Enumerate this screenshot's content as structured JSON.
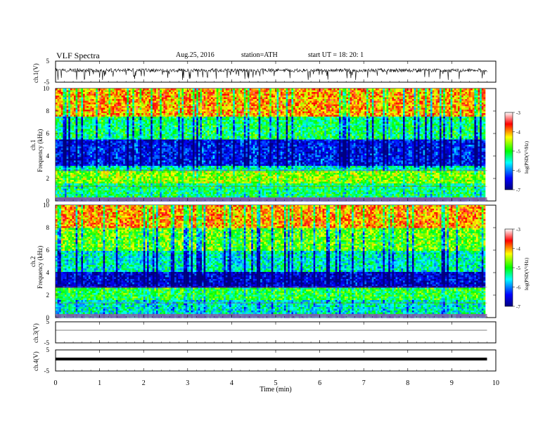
{
  "header": {
    "title": "VLF Spectra",
    "date": "Aug.25, 2016",
    "station": "station=ATH",
    "start": "start UT =   18: 20: 1"
  },
  "colors": {
    "colormap": [
      "#00008f",
      "#0000ff",
      "#00ffff",
      "#00ff00",
      "#ffff00",
      "#ff0000",
      "#ffffff"
    ],
    "trace": "#000000",
    "frame": "#000000"
  },
  "chart_data": [
    {
      "type": "line",
      "panel": "ch1-waveform",
      "ylabel": "ch.1(V)",
      "ylim": [
        -5,
        5
      ],
      "y_ticks": [
        "5",
        "-5"
      ],
      "xlim": [
        0,
        10
      ],
      "description_of_series": "noisy waveform around 0 V with spikes to about -4 V",
      "series": [
        {
          "values_range": [
            -4,
            1.5
          ]
        }
      ]
    },
    {
      "type": "heatmap",
      "panel": "ch1-spectrogram",
      "ylabel": "Frequency (kHz)",
      "ylabel_channel": "ch.1",
      "ylim": [
        0,
        10
      ],
      "y_ticks": [
        "0",
        "2",
        "4",
        "6",
        "8",
        "10"
      ],
      "xlim": [
        0,
        9.8
      ],
      "colorbar": {
        "label": "log(PSD(V²/Hz)",
        "range": [
          -7,
          -3
        ],
        "ticks": [
          "-3",
          "-4",
          "-5",
          "-6",
          "-7"
        ]
      },
      "bands": [
        {
          "from_khz": 0,
          "to_khz": 0.3,
          "level": -6.5
        },
        {
          "from_khz": 0.3,
          "to_khz": 1.5,
          "level": -5.2
        },
        {
          "from_khz": 1.5,
          "to_khz": 2.6,
          "level": -4.6
        },
        {
          "from_khz": 2.6,
          "to_khz": 3.2,
          "level": -5.4
        },
        {
          "from_khz": 3.2,
          "to_khz": 5.5,
          "level": -6.4
        },
        {
          "from_khz": 5.5,
          "to_khz": 7.5,
          "level": -5.2
        },
        {
          "from_khz": 7.5,
          "to_khz": 10,
          "level": -4.0
        }
      ]
    },
    {
      "type": "heatmap",
      "panel": "ch2-spectrogram",
      "ylabel": "Frequency (kHz)",
      "ylabel_channel": "ch.2",
      "ylim": [
        0,
        10
      ],
      "y_ticks": [
        "0",
        "2",
        "4",
        "6",
        "8",
        "10"
      ],
      "xlim": [
        0,
        9.8
      ],
      "colorbar": {
        "label": "log(PSD(V²/Hz)",
        "range": [
          -7,
          -3
        ],
        "ticks": [
          "-3",
          "-4",
          "-5",
          "-6",
          "-7"
        ]
      },
      "bands": [
        {
          "from_khz": 0,
          "to_khz": 0.3,
          "level": -6.0
        },
        {
          "from_khz": 0.3,
          "to_khz": 1.6,
          "level": -5.5
        },
        {
          "from_khz": 1.6,
          "to_khz": 2.6,
          "level": -5.0
        },
        {
          "from_khz": 2.6,
          "to_khz": 4.0,
          "level": -6.6
        },
        {
          "from_khz": 4.0,
          "to_khz": 6.0,
          "level": -5.5
        },
        {
          "from_khz": 6.0,
          "to_khz": 8.0,
          "level": -4.8
        },
        {
          "from_khz": 8.0,
          "to_khz": 10,
          "level": -4.0
        }
      ]
    },
    {
      "type": "line",
      "panel": "ch3-waveform",
      "ylabel": "ch.3(V)",
      "ylim": [
        -5,
        5
      ],
      "y_ticks": [
        "5",
        "-5"
      ],
      "series": [
        {
          "values_range": [
            0,
            0
          ]
        }
      ]
    },
    {
      "type": "line",
      "panel": "ch4-waveform",
      "ylabel": "ch.4(V)",
      "ylim": [
        -5,
        5
      ],
      "y_ticks": [
        "5",
        "-5"
      ],
      "series": [
        {
          "values_range": [
            -0.3,
            0.3
          ]
        }
      ]
    }
  ],
  "xaxis": {
    "label": "Time (min)",
    "ticks": [
      "0",
      "1",
      "2",
      "3",
      "4",
      "5",
      "6",
      "7",
      "8",
      "9",
      "10"
    ],
    "range": [
      0,
      10
    ]
  }
}
